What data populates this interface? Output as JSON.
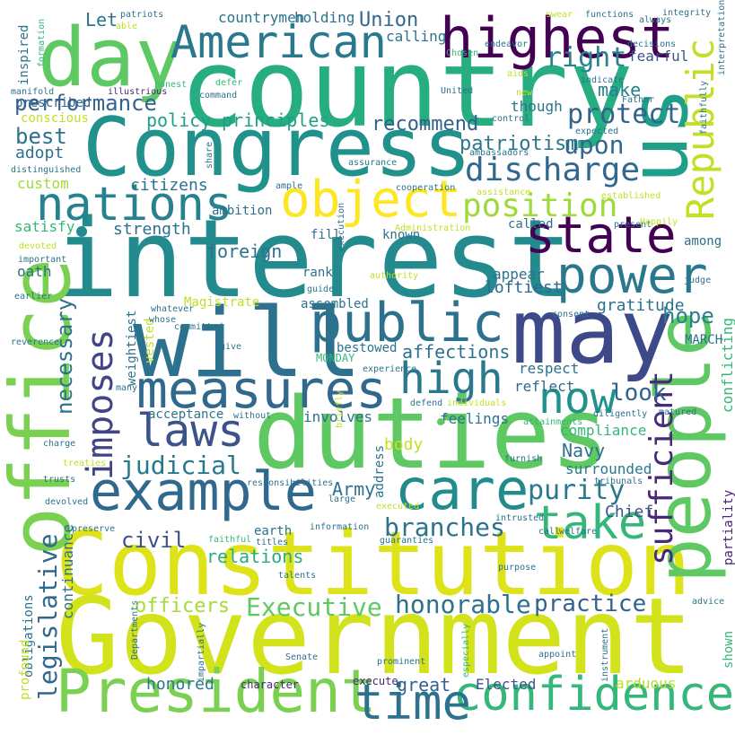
{
  "words": [
    {
      "text": "country",
      "color": "#26ad81"
    },
    {
      "text": "Congress",
      "color": "#21918c"
    },
    {
      "text": "interest",
      "color": "#238a8d"
    },
    {
      "text": "duties",
      "color": "#5ec962"
    },
    {
      "text": "Constitution",
      "color": "#dde318"
    },
    {
      "text": "Government",
      "color": "#d2e21b"
    },
    {
      "text": "will",
      "color": "#2c728e"
    },
    {
      "text": "may",
      "color": "#3e4989"
    },
    {
      "text": "office",
      "color": "#7ad151"
    },
    {
      "text": "people",
      "color": "#5ec962"
    },
    {
      "text": "us",
      "color": "#1f9e89"
    },
    {
      "text": "day",
      "color": "#5ec962"
    },
    {
      "text": "highest",
      "color": "#440154"
    },
    {
      "text": "American",
      "color": "#2a788e"
    },
    {
      "text": "President",
      "color": "#7ad151"
    },
    {
      "text": "public",
      "color": "#2c728e"
    },
    {
      "text": "state",
      "color": "#440154"
    },
    {
      "text": "power",
      "color": "#2a788e"
    },
    {
      "text": "measures",
      "color": "#31688e"
    },
    {
      "text": "example",
      "color": "#31688e"
    },
    {
      "text": "object",
      "color": "#fde725"
    },
    {
      "text": "nations",
      "color": "#26828e"
    },
    {
      "text": "care",
      "color": "#228c8d"
    },
    {
      "text": "take",
      "color": "#35b779"
    },
    {
      "text": "confidence",
      "color": "#35b779"
    },
    {
      "text": "time",
      "color": "#2c728e"
    },
    {
      "text": "laws",
      "color": "#3b528b"
    },
    {
      "text": "now",
      "color": "#21918c"
    },
    {
      "text": "high",
      "color": "#2a788e"
    },
    {
      "text": "Republic",
      "color": "#c2df23"
    },
    {
      "text": "imposes",
      "color": "#414487"
    },
    {
      "text": "sufficient",
      "color": "#482878"
    },
    {
      "text": "discharge",
      "color": "#31688e"
    },
    {
      "text": "position",
      "color": "#9fda3a"
    },
    {
      "text": "protect",
      "color": "#33638d"
    },
    {
      "text": "right",
      "color": "#25858e"
    },
    {
      "text": "purity",
      "color": "#2a788e"
    },
    {
      "text": "Executive",
      "color": "#5ec962"
    },
    {
      "text": "honorable",
      "color": "#2c728e"
    },
    {
      "text": "branches",
      "color": "#2c728e"
    },
    {
      "text": "legislative",
      "color": "#31688e"
    },
    {
      "text": "judicial",
      "color": "#29798e"
    },
    {
      "text": "practice",
      "color": "#33638d"
    },
    {
      "text": "performance",
      "color": "#33638d"
    },
    {
      "text": "patriotism",
      "color": "#2a788e"
    },
    {
      "text": "upon",
      "color": "#31688e"
    },
    {
      "text": "recommend",
      "color": "#34608d"
    },
    {
      "text": "policy",
      "color": "#1f9e89"
    },
    {
      "text": "principles",
      "color": "#1f9e89"
    },
    {
      "text": "Union",
      "color": "#31688e"
    },
    {
      "text": "best",
      "color": "#2c728e"
    },
    {
      "text": "look",
      "color": "#33638d"
    },
    {
      "text": "hope",
      "color": "#26828e"
    },
    {
      "text": "great",
      "color": "#33638d"
    },
    {
      "text": "Elected",
      "color": "#3b528b"
    },
    {
      "text": "arduous",
      "color": "#b5de2b"
    },
    {
      "text": "honored",
      "color": "#2a788e"
    },
    {
      "text": "character",
      "color": "#482878"
    },
    {
      "text": "execute",
      "color": "#482878"
    },
    {
      "text": "officers",
      "color": "#a5db36"
    },
    {
      "text": "civil",
      "color": "#3b528b"
    },
    {
      "text": "Army",
      "color": "#2c728e"
    },
    {
      "text": "Navy",
      "color": "#2c728e"
    },
    {
      "text": "Chief",
      "color": "#3b528b"
    },
    {
      "text": "make",
      "color": "#26828e"
    },
    {
      "text": "fearful",
      "color": "#3b528b"
    },
    {
      "text": "strength",
      "color": "#2c728e"
    },
    {
      "text": "foreign",
      "color": "#2c728e"
    },
    {
      "text": "relations",
      "color": "#27ad81"
    },
    {
      "text": "citizens",
      "color": "#2c728e"
    },
    {
      "text": "necessary",
      "color": "#2c728e"
    },
    {
      "text": "affections",
      "color": "#2c728e"
    },
    {
      "text": "loftiest",
      "color": "#31688e"
    },
    {
      "text": "gratitude",
      "color": "#2c728e"
    },
    {
      "text": "respect",
      "color": "#2c728e"
    },
    {
      "text": "reflect",
      "color": "#31688e"
    },
    {
      "text": "feelings",
      "color": "#2c728e"
    },
    {
      "text": "compliance",
      "color": "#35b779"
    },
    {
      "text": "conflicting",
      "color": "#35b779"
    },
    {
      "text": "surrounded",
      "color": "#2a788e"
    },
    {
      "text": "body",
      "color": "#c8e020"
    },
    {
      "text": "involves",
      "color": "#2c728e"
    },
    {
      "text": "continuance",
      "color": "#2c728e"
    },
    {
      "text": "obligations",
      "color": "#2c728e"
    },
    {
      "text": "partiality",
      "color": "#482878"
    },
    {
      "text": "satisfy",
      "color": "#35b779"
    },
    {
      "text": "adopt",
      "color": "#2c728e"
    },
    {
      "text": "custom",
      "color": "#9fda3a"
    },
    {
      "text": "prescribed",
      "color": "#33638d"
    },
    {
      "text": "conscious",
      "color": "#c2df23"
    },
    {
      "text": "inspired",
      "color": "#2c728e"
    },
    {
      "text": "Let",
      "color": "#2c728e"
    },
    {
      "text": "countrymen",
      "color": "#2c728e"
    },
    {
      "text": "holding",
      "color": "#2c728e"
    },
    {
      "text": "calling",
      "color": "#2c728e"
    },
    {
      "text": "though",
      "color": "#2c728e"
    },
    {
      "text": "among",
      "color": "#2c728e"
    },
    {
      "text": "called",
      "color": "#2c728e"
    },
    {
      "text": "known",
      "color": "#2c728e"
    },
    {
      "text": "fill",
      "color": "#2c728e"
    },
    {
      "text": "appear",
      "color": "#2c728e"
    },
    {
      "text": "rank",
      "color": "#2c728e"
    },
    {
      "text": "assembled",
      "color": "#2c728e"
    },
    {
      "text": "bestowed",
      "color": "#2c728e"
    },
    {
      "text": "MONDAY",
      "color": "#35b779"
    },
    {
      "text": "MARCH",
      "color": "#2c728e"
    },
    {
      "text": "ambition",
      "color": "#2c728e"
    },
    {
      "text": "vested",
      "color": "#c2df23"
    },
    {
      "text": "weightiest",
      "color": "#2c728e"
    },
    {
      "text": "acceptance",
      "color": "#2c728e"
    },
    {
      "text": "Magistrate",
      "color": "#c2df23"
    },
    {
      "text": "oath",
      "color": "#2c728e"
    },
    {
      "text": "address",
      "color": "#2c728e"
    },
    {
      "text": "earth",
      "color": "#2c728e"
    },
    {
      "text": "profound",
      "color": "#c2df23"
    },
    {
      "text": "shown",
      "color": "#35b779"
    },
    {
      "text": "faithful",
      "color": "#35b779"
    },
    {
      "text": "titles",
      "color": "#2c728e"
    },
    {
      "text": "information",
      "color": "#2c728e"
    },
    {
      "text": "guaranties",
      "color": "#2c728e"
    },
    {
      "text": "purpose",
      "color": "#2c728e"
    },
    {
      "text": "talents",
      "color": "#2c728e"
    },
    {
      "text": "Senate",
      "color": "#2c728e"
    },
    {
      "text": "prominent",
      "color": "#2c728e"
    },
    {
      "text": "appoint",
      "color": "#2c728e"
    },
    {
      "text": "instrument",
      "color": "#2c728e"
    },
    {
      "text": "especially",
      "color": "#35b779"
    },
    {
      "text": "impartially",
      "color": "#2c728e"
    },
    {
      "text": "Departments",
      "color": "#2c728e"
    },
    {
      "text": "preserve",
      "color": "#2c728e"
    },
    {
      "text": "devolved",
      "color": "#2c728e"
    },
    {
      "text": "trusts",
      "color": "#2c728e"
    },
    {
      "text": "treaties",
      "color": "#c2df23"
    },
    {
      "text": "charge",
      "color": "#2c728e"
    },
    {
      "text": "reverence",
      "color": "#2c728e"
    },
    {
      "text": "earlier",
      "color": "#2c728e"
    },
    {
      "text": "important",
      "color": "#2c728e"
    },
    {
      "text": "devoted",
      "color": "#c2df23"
    },
    {
      "text": "distinguished",
      "color": "#2c728e"
    },
    {
      "text": "manifold",
      "color": "#2c728e"
    },
    {
      "text": "formation",
      "color": "#35b779"
    },
    {
      "text": "patriots",
      "color": "#2c728e"
    },
    {
      "text": "able",
      "color": "#c2df23"
    },
    {
      "text": "illustrious",
      "color": "#482878"
    },
    {
      "text": "honest",
      "color": "#35b779"
    },
    {
      "text": "command",
      "color": "#2c728e"
    },
    {
      "text": "defer",
      "color": "#35b779"
    },
    {
      "text": "United",
      "color": "#2c728e"
    },
    {
      "text": "Chosen",
      "color": "#35b779"
    },
    {
      "text": "endeavor",
      "color": "#2c728e"
    },
    {
      "text": "swear",
      "color": "#c2df23"
    },
    {
      "text": "functions",
      "color": "#2c728e"
    },
    {
      "text": "integrity",
      "color": "#2c728e"
    },
    {
      "text": "always",
      "color": "#2c728e"
    },
    {
      "text": "decisions",
      "color": "#2c728e"
    },
    {
      "text": "indicate",
      "color": "#2c728e"
    },
    {
      "text": "interpretation",
      "color": "#2c728e"
    },
    {
      "text": "Father",
      "color": "#2c728e"
    },
    {
      "text": "aids",
      "color": "#c2df23"
    },
    {
      "text": "new",
      "color": "#c2df23"
    },
    {
      "text": "control",
      "color": "#2c728e"
    },
    {
      "text": "expected",
      "color": "#2c728e"
    },
    {
      "text": "ambassadors",
      "color": "#2c728e"
    },
    {
      "text": "assurance",
      "color": "#2c728e"
    },
    {
      "text": "cooperation",
      "color": "#2c728e"
    },
    {
      "text": "assistance",
      "color": "#c2df23"
    },
    {
      "text": "faithfully",
      "color": "#2c728e"
    },
    {
      "text": "established",
      "color": "#c2df23"
    },
    {
      "text": "Administration",
      "color": "#c2df23"
    },
    {
      "text": "present",
      "color": "#2c728e"
    },
    {
      "text": "Happily",
      "color": "#c2df23"
    },
    {
      "text": "judge",
      "color": "#2c728e"
    },
    {
      "text": "authority",
      "color": "#c2df23"
    },
    {
      "text": "guide",
      "color": "#2c728e"
    },
    {
      "text": "execution",
      "color": "#2c728e"
    },
    {
      "text": "consent",
      "color": "#2c728e"
    },
    {
      "text": "whatever",
      "color": "#2c728e"
    },
    {
      "text": "whose",
      "color": "#2c728e"
    },
    {
      "text": "committed",
      "color": "#2c728e"
    },
    {
      "text": "give",
      "color": "#2c728e"
    },
    {
      "text": "experience",
      "color": "#2c728e"
    },
    {
      "text": "many",
      "color": "#2c728e"
    },
    {
      "text": "without",
      "color": "#2c728e"
    },
    {
      "text": "defend",
      "color": "#2c728e"
    },
    {
      "text": "individuals",
      "color": "#c2df23"
    },
    {
      "text": "matured",
      "color": "#2c728e"
    },
    {
      "text": "diligently",
      "color": "#2c728e"
    },
    {
      "text": "attainments",
      "color": "#35b779"
    },
    {
      "text": "briefly",
      "color": "#c2df23"
    },
    {
      "text": "furnish",
      "color": "#2c728e"
    },
    {
      "text": "tribunals",
      "color": "#2c728e"
    },
    {
      "text": "responsibilities",
      "color": "#2c728e"
    },
    {
      "text": "large",
      "color": "#2c728e"
    },
    {
      "text": "executed",
      "color": "#c2df23"
    },
    {
      "text": "intrusted",
      "color": "#2c728e"
    },
    {
      "text": "call",
      "color": "#2c728e"
    },
    {
      "text": "welfare",
      "color": "#2c728e"
    },
    {
      "text": "advice",
      "color": "#2c728e"
    },
    {
      "text": "ample",
      "color": "#2c728e"
    },
    {
      "text": "share",
      "color": "#2c728e"
    }
  ]
}
